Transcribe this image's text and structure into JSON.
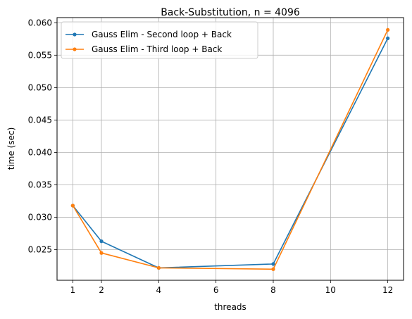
{
  "chart_data": {
    "type": "line",
    "title": "Back-Substitution, n = 4096",
    "xlabel": "threads",
    "ylabel": "time (sec)",
    "x": [
      1,
      2,
      4,
      8,
      12
    ],
    "xticks": [
      1,
      2,
      4,
      6,
      8,
      10,
      12
    ],
    "xlim": [
      0.45,
      12.55
    ],
    "yticks": [
      0.025,
      0.03,
      0.035,
      0.04,
      0.045,
      0.05,
      0.055,
      0.06
    ],
    "ylim": [
      0.02029,
      0.06079
    ],
    "grid": true,
    "legend_position": "upper-left",
    "series": [
      {
        "name": "Gauss Elim - Second loop + Back",
        "color": "#1f77b4",
        "values": [
          0.0318,
          0.0263,
          0.0222,
          0.0228,
          0.0576
        ]
      },
      {
        "name": "Gauss Elim - Third loop + Back",
        "color": "#ff7f0e",
        "values": [
          0.0318,
          0.0245,
          0.0222,
          0.022,
          0.0589
        ]
      }
    ]
  }
}
